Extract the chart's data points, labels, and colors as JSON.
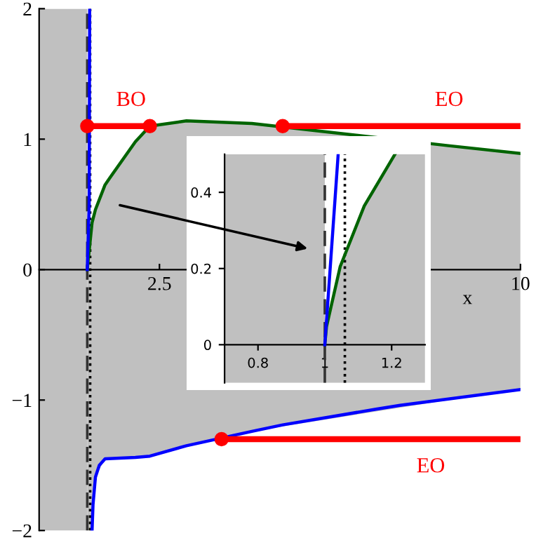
{
  "chart_data": [
    {
      "type": "line",
      "xlabel": "x",
      "xlim": [
        0,
        10
      ],
      "ylim": [
        -2,
        2
      ],
      "xticks": [
        2.5,
        10
      ],
      "yticks": [
        -2,
        -1,
        0,
        1,
        2
      ],
      "grid": false,
      "legend": false,
      "bands": [
        {
          "axis": "x",
          "from": 0,
          "to": 1,
          "color": "#c0c0c0"
        }
      ],
      "ref_lines": [
        {
          "axis": "x",
          "value": 1,
          "color": "#333333",
          "line_style": "dashed"
        },
        {
          "axis": "x",
          "value": 1.06,
          "color": "#000000",
          "line_style": "dotted"
        }
      ],
      "series": [
        {
          "color": "#006400",
          "x": [
            1,
            1.1,
            1.17,
            1.37,
            1.5,
            2,
            2.3,
            3.06,
            3.79,
            4.42,
            8.5,
            10
          ],
          "values": [
            0,
            0.36,
            0.46,
            0.65,
            0.72,
            0.98,
            1.1,
            1.14,
            1.13,
            1.12,
            0.95,
            0.89
          ],
          "lower": [
            -2,
            -2,
            -1.59,
            -1.45,
            -1.45,
            -1.44,
            -1.43,
            -1.35,
            -1.3,
            -1.24,
            -1.0,
            -0.92
          ],
          "upper": [
            0,
            0.36,
            0.46,
            0.65,
            0.72,
            0.98,
            1.1,
            1.14,
            1.13,
            1.12,
            0.95,
            0.89
          ]
        },
        {
          "color": "#0000ff",
          "x": [
            1.1,
            1.12,
            1.17,
            1.25,
            1.37,
            2,
            2.3,
            3.06,
            4.42,
            5.06,
            7,
            7.5,
            10
          ],
          "values": [
            -2,
            -1.8,
            -1.59,
            -1.5,
            -1.45,
            -1.44,
            -1.43,
            -1.35,
            -1.24,
            -1.19,
            -1.07,
            -1.04,
            -0.92
          ]
        },
        {
          "color": "#0000ff",
          "x": [
            1,
            1.02,
            1.04,
            1.05
          ],
          "values": [
            0,
            0.25,
            0.5,
            2
          ]
        },
        {
          "name": "BO",
          "color": "#ff0000",
          "x": [
            1,
            2.3
          ],
          "values": [
            1.1,
            1.1
          ]
        },
        {
          "name": "EO",
          "color": "#ff0000",
          "x": [
            5.06,
            10
          ],
          "values": [
            1.1,
            1.1
          ]
        },
        {
          "name": "EO",
          "color": "#ff0000",
          "x": [
            3.79,
            10
          ],
          "values": [
            -1.3,
            -1.3
          ]
        },
        {
          "type": "scatter",
          "color": "#ff0000",
          "marker": "circle",
          "x": [
            1,
            2.3,
            5.06,
            3.79
          ],
          "values": [
            1.1,
            1.1,
            1.1,
            -1.3
          ]
        }
      ]
    },
    {
      "type": "line",
      "xlim": [
        0.7,
        1.3
      ],
      "ylim": [
        -0.1,
        0.5
      ],
      "xticks": [
        0.8,
        1,
        1.2
      ],
      "yticks": [
        0,
        0.2,
        0.4
      ],
      "grid": false,
      "legend": false,
      "bands": [
        {
          "axis": "x",
          "from": 0.7,
          "to": 1,
          "color": "#c0c0c0"
        },
        {
          "axis": "x",
          "from": 1.21,
          "to": 1.3,
          "color": "#c0c0c0"
        }
      ],
      "ref_lines": [
        {
          "axis": "x",
          "value": 1,
          "color": "#333333",
          "line_style": "dashed"
        },
        {
          "axis": "x",
          "value": 1.06,
          "color": "#000000",
          "line_style": "dotted"
        }
      ],
      "series": [
        {
          "color": "#006400",
          "x": [
            1,
            1.005,
            1.046,
            1.118,
            1.21
          ],
          "values": [
            0,
            0.047,
            0.205,
            0.364,
            0.5
          ],
          "lower": [
            -0.1,
            -0.1,
            -0.1,
            -0.1,
            -0.1
          ],
          "upper": [
            0,
            0.047,
            0.205,
            0.364,
            0.5
          ]
        },
        {
          "color": "#0000ff",
          "x": [
            1,
            1.04
          ],
          "values": [
            0,
            0.5
          ]
        }
      ]
    }
  ]
}
